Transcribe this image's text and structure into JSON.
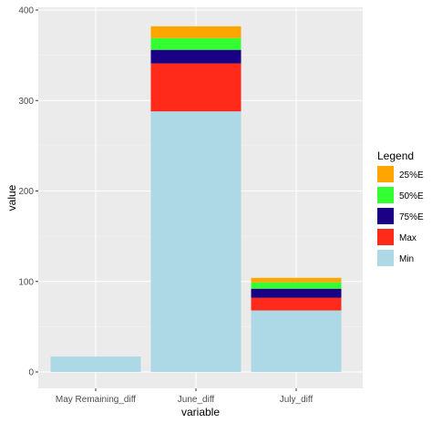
{
  "chart_data": {
    "type": "bar",
    "stacked": true,
    "xlabel": "variable",
    "ylabel": "value",
    "categories": [
      "May Remaining_diff",
      "June_diff",
      "July_diff"
    ],
    "ylim": [
      0,
      400
    ],
    "yticks": [
      0,
      100,
      200,
      300,
      400
    ],
    "grid": true,
    "legend_title": "Legend",
    "legend_position": "right",
    "series": [
      {
        "name": "Min",
        "color": "#add8e6",
        "values": [
          17,
          288,
          68
        ]
      },
      {
        "name": "Max",
        "color": "#ff2a1a",
        "values": [
          0,
          53,
          14
        ]
      },
      {
        "name": "75%E",
        "color": "#1a0085",
        "values": [
          0,
          15,
          10
        ]
      },
      {
        "name": "50%E",
        "color": "#33ff33",
        "values": [
          0,
          13,
          7
        ]
      },
      {
        "name": "25%E",
        "color": "#ffa500",
        "values": [
          0,
          13,
          5
        ]
      }
    ],
    "legend_order": [
      "25%E",
      "50%E",
      "75%E",
      "Max",
      "Min"
    ]
  }
}
